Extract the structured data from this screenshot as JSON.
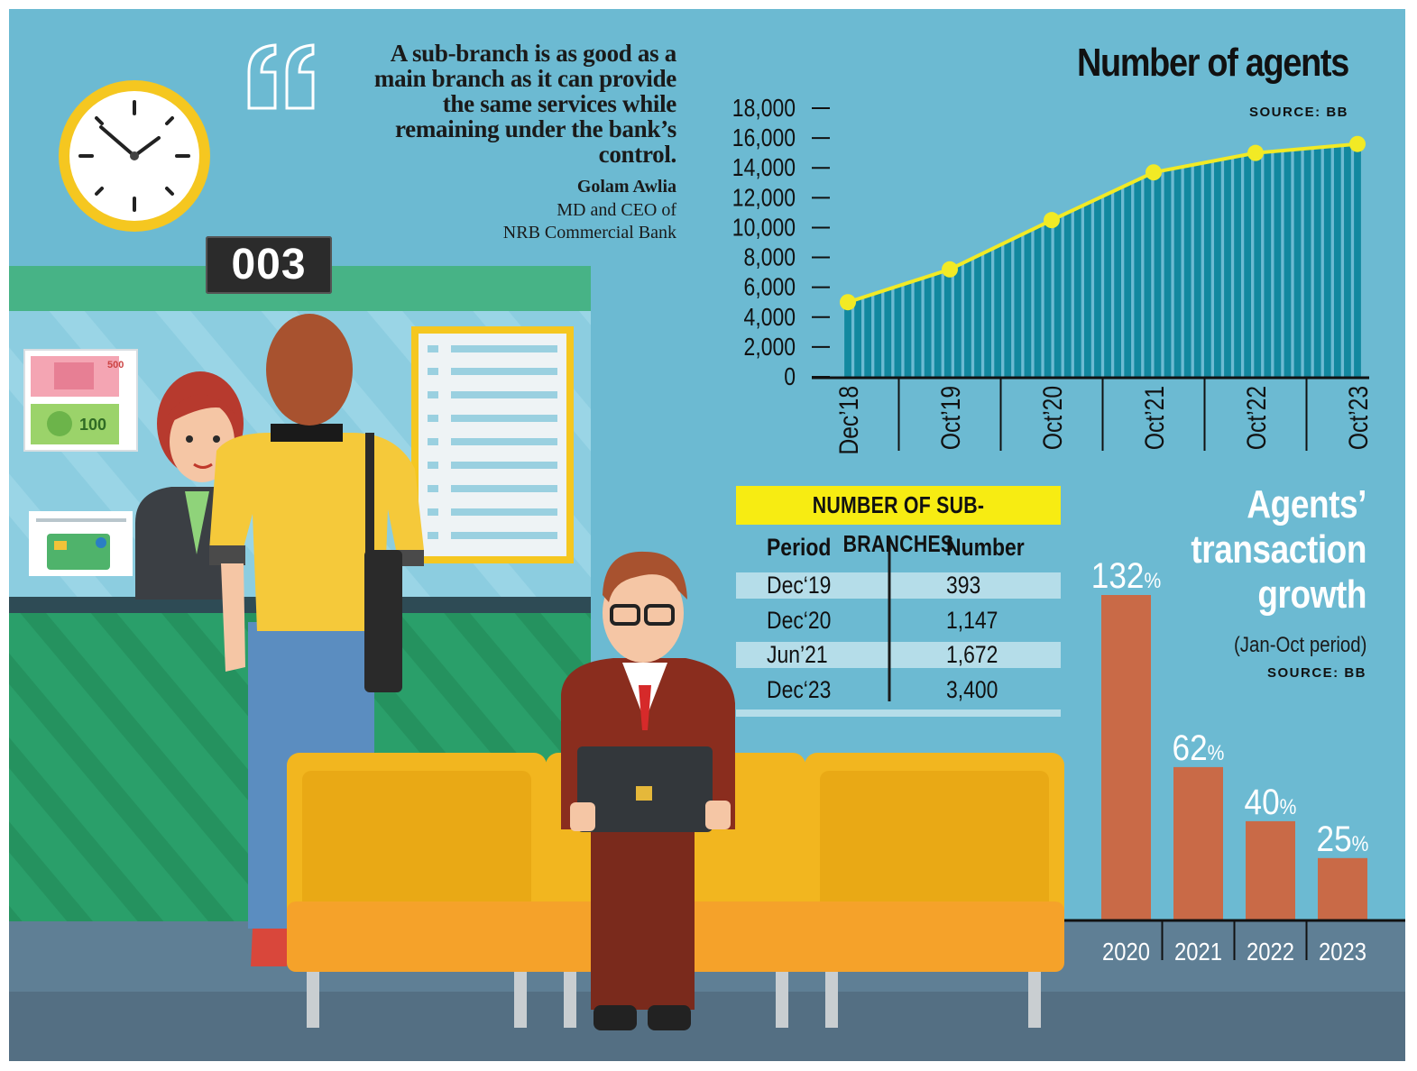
{
  "quote": {
    "lines": [
      "A sub-branch is as good as a",
      "main branch as it can provide",
      "the same services while",
      "remaining under the bank’s",
      "control."
    ],
    "author": "Golam Awlia",
    "role_line1": "MD and CEO of",
    "role_line2": "NRB Commercial Bank"
  },
  "counter_display": "003",
  "banknotes": [
    "500",
    "100"
  ],
  "colors": {
    "background": "#6cbad2",
    "agents_bars": "#12889f",
    "agents_line": "#f2ea25",
    "growth_bars": "#c96a47",
    "highlight_yellow": "#f7ec12",
    "counter_green": "#1c9a62",
    "bench_yellow": "#f2b61f"
  },
  "chart_data": [
    {
      "type": "area",
      "title": "Number of agents",
      "source": "SOURCE: BB",
      "x_tick_labels": [
        "Dec’18",
        "Oct’19",
        "Oct’20",
        "Oct’21",
        "Oct’22",
        "Oct’23"
      ],
      "y_tick_labels": [
        "18,000",
        "16,000",
        "14,000",
        "12,000",
        "10,000",
        "8,000",
        "6,000",
        "4,000",
        "2,000",
        "0"
      ],
      "ylim": [
        0,
        18000
      ],
      "grid": false,
      "series": [
        {
          "x": [
            "Dec’18",
            "Oct’19",
            "Oct’20",
            "Oct’21",
            "Oct’22",
            "Oct’23"
          ],
          "values": [
            5000,
            7200,
            10500,
            13700,
            15000,
            15600
          ]
        }
      ]
    },
    {
      "type": "table",
      "title": "NUMBER OF SUB-BRANCHES",
      "columns": [
        "Period",
        "Number"
      ],
      "rows": [
        [
          "Dec‘19",
          "393"
        ],
        [
          "Dec‘20",
          "1,147"
        ],
        [
          "Jun’21",
          "1,672"
        ],
        [
          "Dec‘23",
          "3,400"
        ]
      ]
    },
    {
      "type": "bar",
      "title": "Agents’ transaction growth",
      "title_lines": [
        "Agents’",
        "transaction",
        "growth"
      ],
      "subtitle": "(Jan-Oct period)",
      "source": "SOURCE: BB",
      "categories": [
        "2020",
        "2021",
        "2022",
        "2023"
      ],
      "values": [
        132,
        62,
        40,
        25
      ],
      "value_labels": [
        "132",
        "62",
        "40",
        "25"
      ],
      "unit": "%"
    }
  ]
}
